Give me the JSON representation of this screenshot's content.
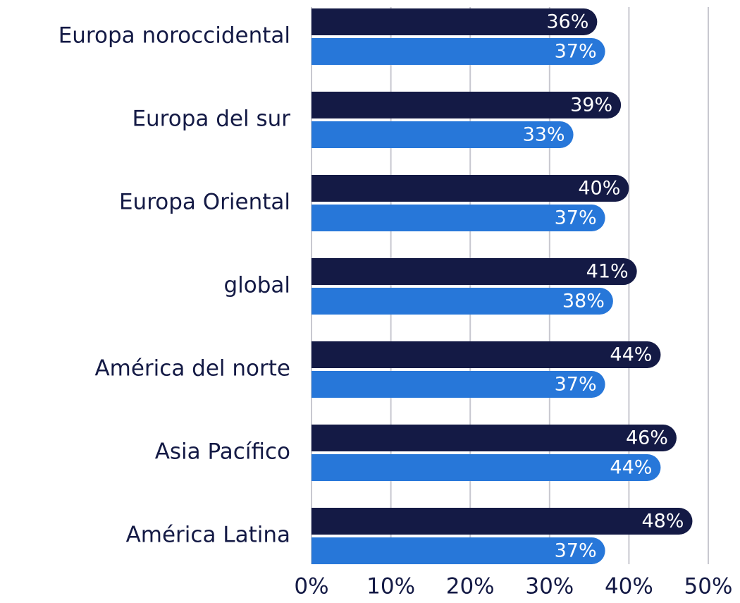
{
  "chart_data": {
    "type": "bar",
    "orientation": "horizontal",
    "categories": [
      "Europa noroccidental",
      "Europa del sur",
      "Europa Oriental",
      "global",
      "América del norte",
      "Asia Pacífico",
      "América Latina"
    ],
    "series": [
      {
        "color": "#141a45",
        "values": [
          36,
          39,
          40,
          41,
          44,
          46,
          48
        ],
        "value_labels": [
          "36%",
          "39%",
          "40%",
          "41%",
          "44%",
          "46%",
          "48%"
        ]
      },
      {
        "color": "#2777d9",
        "values": [
          37,
          33,
          37,
          38,
          37,
          44,
          37
        ],
        "value_labels": [
          "37%",
          "33%",
          "37%",
          "38%",
          "37%",
          "44%",
          "37%"
        ]
      }
    ],
    "xlim": [
      0,
      50
    ],
    "xticks": [
      {
        "value": 0,
        "label": "0%"
      },
      {
        "value": 10,
        "label": "10%"
      },
      {
        "value": 20,
        "label": "20%"
      },
      {
        "value": 30,
        "label": "30%"
      },
      {
        "value": 40,
        "label": "40%"
      },
      {
        "value": 50,
        "label": "50%"
      }
    ],
    "grid": true
  }
}
